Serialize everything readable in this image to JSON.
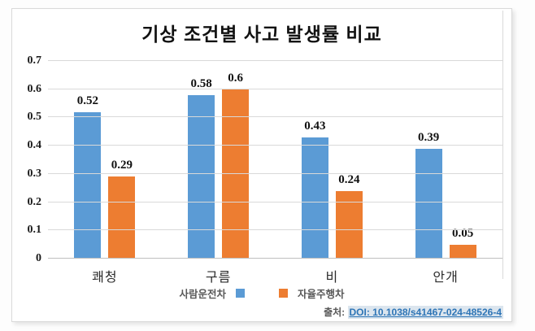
{
  "chart_data": {
    "type": "bar",
    "title": "기상 조건별 사고 발생률 비교",
    "categories": [
      "쾌청",
      "구름",
      "비",
      "안개"
    ],
    "series": [
      {
        "name": "사람운전차",
        "color": "#5B9BD5",
        "values": [
          0.52,
          0.58,
          0.43,
          0.39
        ],
        "labels": [
          "0.52",
          "0.58",
          "0.43",
          "0.39"
        ]
      },
      {
        "name": "자율주행차",
        "color": "#ED7D31",
        "values": [
          0.29,
          0.6,
          0.24,
          0.05
        ],
        "labels": [
          "0.29",
          "0.6",
          "0.24",
          "0.05"
        ]
      }
    ],
    "xlabel": "",
    "ylabel": "",
    "ymax": 0.7,
    "ylim": [
      0,
      0.7
    ],
    "yticks": [
      "0",
      "0.1",
      "0.2",
      "0.3",
      "0.4",
      "0.5",
      "0.6",
      "0.7"
    ],
    "grid": true,
    "legend_position": "bottom"
  },
  "source": {
    "prefix": "출처:",
    "link_text": "DOI: 10.1038/s41467-024-48526-4"
  },
  "colors": {
    "series_blue": "#5B9BD5",
    "series_orange": "#ED7D31",
    "gridline": "#d9d9d9",
    "axis_line": "#bfbfbf",
    "link": "#2e75b6",
    "link_highlight": "#dbe5ee"
  }
}
